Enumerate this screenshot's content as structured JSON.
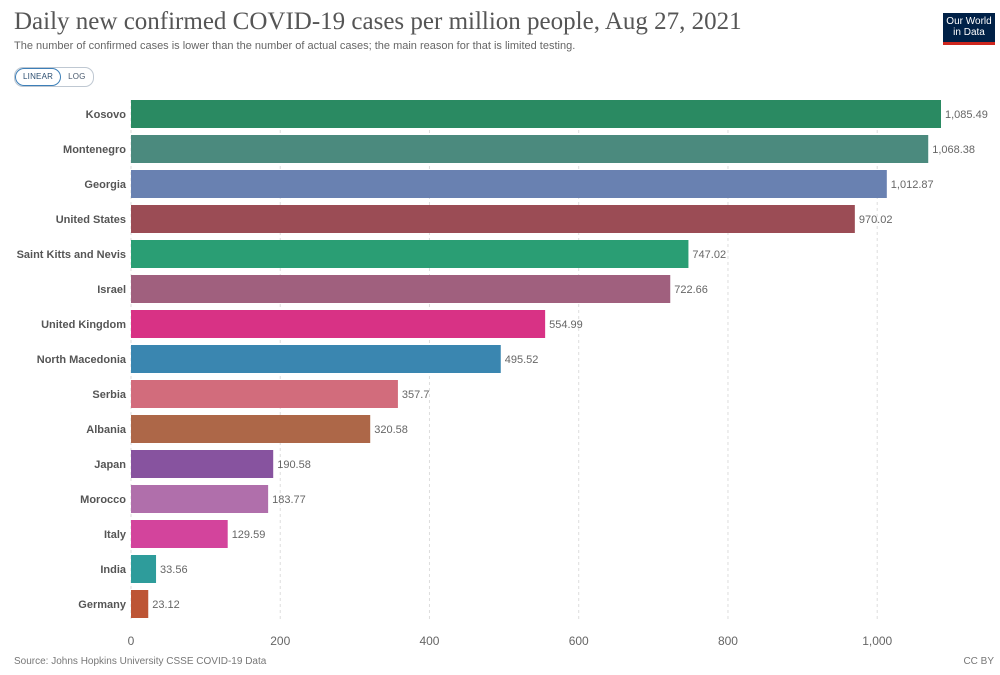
{
  "header": {
    "title": "Daily new confirmed COVID-19 cases per million people, Aug 27, 2021",
    "subtitle": "The number of confirmed cases is lower than the number of actual cases; the main reason for that is limited testing.",
    "logo_line1": "Our World",
    "logo_line2": "in Data",
    "logo_bg": "#002147",
    "logo_accent": "#ce261e"
  },
  "toggles": {
    "linear": "LINEAR",
    "log": "LOG",
    "active": "linear"
  },
  "footer": {
    "source": "Source: Johns Hopkins University CSSE COVID-19 Data",
    "license": "CC BY"
  },
  "chart_data": {
    "type": "bar",
    "orientation": "horizontal",
    "title": "Daily new confirmed COVID-19 cases per million people, Aug 27, 2021",
    "xlabel": "",
    "ylabel": "",
    "xlim": [
      0,
      1085.49
    ],
    "x_ticks": [
      0,
      200,
      400,
      600,
      800,
      1000
    ],
    "x_tick_labels": [
      "0",
      "200",
      "400",
      "600",
      "800",
      "1,000"
    ],
    "grid": "vertical dotted",
    "categories": [
      "Kosovo",
      "Montenegro",
      "Georgia",
      "United States",
      "Saint Kitts and Nevis",
      "Israel",
      "United Kingdom",
      "North Macedonia",
      "Serbia",
      "Albania",
      "Japan",
      "Morocco",
      "Italy",
      "India",
      "Germany"
    ],
    "values": [
      1085.49,
      1068.38,
      1012.87,
      970.02,
      747.02,
      722.66,
      554.99,
      495.52,
      357.7,
      320.58,
      190.58,
      183.77,
      129.59,
      33.56,
      23.12
    ],
    "value_labels": [
      "1,085.49",
      "1,068.38",
      "1,012.87",
      "970.02",
      "747.02",
      "722.66",
      "554.99",
      "495.52",
      "357.7",
      "320.58",
      "190.58",
      "183.77",
      "129.59",
      "33.56",
      "23.12"
    ],
    "colors": [
      "#2a8a62",
      "#4b8a7e",
      "#6981b1",
      "#9b4c55",
      "#2a9e74",
      "#a0607e",
      "#d83285",
      "#3a86b0",
      "#d26c7c",
      "#ad6748",
      "#87539f",
      "#b06fab",
      "#d3449c",
      "#2e9c9b",
      "#bd5535"
    ]
  }
}
